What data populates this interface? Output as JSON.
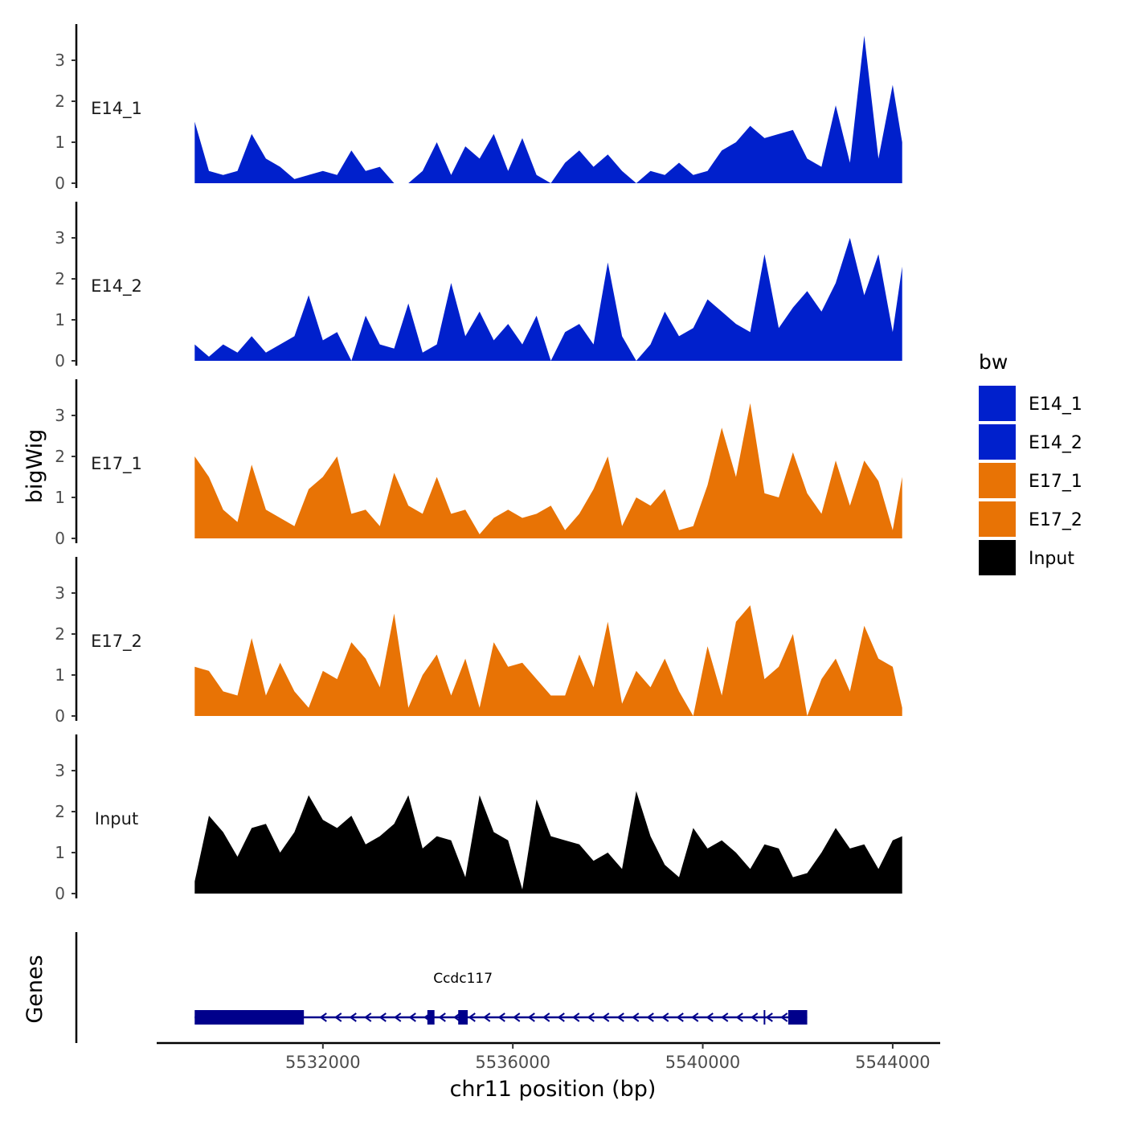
{
  "chart_data": {
    "type": "area",
    "x_axis": {
      "title": "chr11 position (bp)",
      "range": [
        5528500,
        5545000
      ],
      "ticks": [
        5532000,
        5536000,
        5540000,
        5544000
      ],
      "tick_labels": [
        "5532000",
        "5536000",
        "5540000",
        "5544000"
      ]
    },
    "y_axis": {
      "title": "bigWig",
      "range": [
        0,
        3.8
      ],
      "ticks": [
        0,
        1,
        2,
        3
      ],
      "tick_labels": [
        "0",
        "1",
        "2",
        "3"
      ]
    },
    "x": [
      5529300,
      5529600,
      5529900,
      5530200,
      5530500,
      5530800,
      5531100,
      5531400,
      5531700,
      5532000,
      5532300,
      5532600,
      5532900,
      5533200,
      5533500,
      5533800,
      5534100,
      5534400,
      5534700,
      5535000,
      5535300,
      5535600,
      5535900,
      5536200,
      5536500,
      5536800,
      5537100,
      5537400,
      5537700,
      5538000,
      5538300,
      5538600,
      5538900,
      5539200,
      5539500,
      5539800,
      5540100,
      5540400,
      5540700,
      5541000,
      5541300,
      5541600,
      5541900,
      5542200,
      5542500,
      5542800,
      5543100,
      5543400,
      5543700,
      5544000,
      5544200
    ],
    "series": [
      {
        "name": "E14_1",
        "color": "#0020cc",
        "values": [
          1.5,
          0.3,
          0.2,
          0.3,
          1.2,
          0.6,
          0.4,
          0.1,
          0.2,
          0.3,
          0.2,
          0.8,
          0.3,
          0.4,
          0.0,
          0.0,
          0.3,
          1.0,
          0.2,
          0.9,
          0.6,
          1.2,
          0.3,
          1.1,
          0.2,
          0.0,
          0.5,
          0.8,
          0.4,
          0.7,
          0.3,
          0.0,
          0.3,
          0.2,
          0.5,
          0.2,
          0.3,
          0.8,
          1.0,
          1.4,
          1.1,
          1.2,
          1.3,
          0.6,
          0.4,
          1.9,
          0.5,
          3.6,
          0.6,
          2.4,
          1.0
        ]
      },
      {
        "name": "E14_2",
        "color": "#0020cc",
        "values": [
          0.4,
          0.1,
          0.4,
          0.2,
          0.6,
          0.2,
          0.4,
          0.6,
          1.6,
          0.5,
          0.7,
          0.0,
          1.1,
          0.4,
          0.3,
          1.4,
          0.2,
          0.4,
          1.9,
          0.6,
          1.2,
          0.5,
          0.9,
          0.4,
          1.1,
          0.0,
          0.7,
          0.9,
          0.4,
          2.4,
          0.6,
          0.0,
          0.4,
          1.2,
          0.6,
          0.8,
          1.5,
          1.2,
          0.9,
          0.7,
          2.6,
          0.8,
          1.3,
          1.7,
          1.2,
          1.9,
          3.0,
          1.6,
          2.6,
          0.7,
          2.3
        ]
      },
      {
        "name": "E17_1",
        "color": "#e87305",
        "values": [
          2.0,
          1.5,
          0.7,
          0.4,
          1.8,
          0.7,
          0.5,
          0.3,
          1.2,
          1.5,
          2.0,
          0.6,
          0.7,
          0.3,
          1.6,
          0.8,
          0.6,
          1.5,
          0.6,
          0.7,
          0.1,
          0.5,
          0.7,
          0.5,
          0.6,
          0.8,
          0.2,
          0.6,
          1.2,
          2.0,
          0.3,
          1.0,
          0.8,
          1.2,
          0.2,
          0.3,
          1.3,
          2.7,
          1.5,
          3.3,
          1.1,
          1.0,
          2.1,
          1.1,
          0.6,
          1.9,
          0.8,
          1.9,
          1.4,
          0.2,
          1.5
        ]
      },
      {
        "name": "E17_2",
        "color": "#e87305",
        "values": [
          1.2,
          1.1,
          0.6,
          0.5,
          1.9,
          0.5,
          1.3,
          0.6,
          0.2,
          1.1,
          0.9,
          1.8,
          1.4,
          0.7,
          2.5,
          0.2,
          1.0,
          1.5,
          0.5,
          1.4,
          0.2,
          1.8,
          1.2,
          1.3,
          0.9,
          0.5,
          0.5,
          1.5,
          0.7,
          2.3,
          0.3,
          1.1,
          0.7,
          1.4,
          0.6,
          0.0,
          1.7,
          0.5,
          2.3,
          2.7,
          0.9,
          1.2,
          2.0,
          0.0,
          0.9,
          1.4,
          0.6,
          2.2,
          1.4,
          1.2,
          0.2
        ]
      },
      {
        "name": "Input",
        "color": "#000000",
        "values": [
          0.3,
          1.9,
          1.5,
          0.9,
          1.6,
          1.7,
          1.0,
          1.5,
          2.4,
          1.8,
          1.6,
          1.9,
          1.2,
          1.4,
          1.7,
          2.4,
          1.1,
          1.4,
          1.3,
          0.4,
          2.4,
          1.5,
          1.3,
          0.1,
          2.3,
          1.4,
          1.3,
          1.2,
          0.8,
          1.0,
          0.6,
          2.5,
          1.4,
          0.7,
          0.4,
          1.6,
          1.1,
          1.3,
          1.0,
          0.6,
          1.2,
          1.1,
          0.4,
          0.5,
          1.0,
          1.6,
          1.1,
          1.2,
          0.6,
          1.3,
          1.4
        ]
      }
    ],
    "legend": {
      "title": "bw",
      "position": "right",
      "entries": [
        {
          "label": "E14_1",
          "color": "#0020cc"
        },
        {
          "label": "E14_2",
          "color": "#0020cc"
        },
        {
          "label": "E17_1",
          "color": "#e87305"
        },
        {
          "label": "E17_2",
          "color": "#e87305"
        },
        {
          "label": "Input",
          "color": "#000000"
        }
      ]
    },
    "genes_track": {
      "title": "Genes",
      "color": "#00008b",
      "genes": [
        {
          "name": "Ccdc117",
          "strand": "-",
          "start": 5529300,
          "end": 5542200,
          "exons": [
            [
              5529300,
              5531600
            ],
            [
              5534200,
              5534350
            ],
            [
              5534850,
              5535050
            ],
            [
              5541800,
              5542200
            ]
          ],
          "marker": 5541300
        }
      ]
    }
  }
}
